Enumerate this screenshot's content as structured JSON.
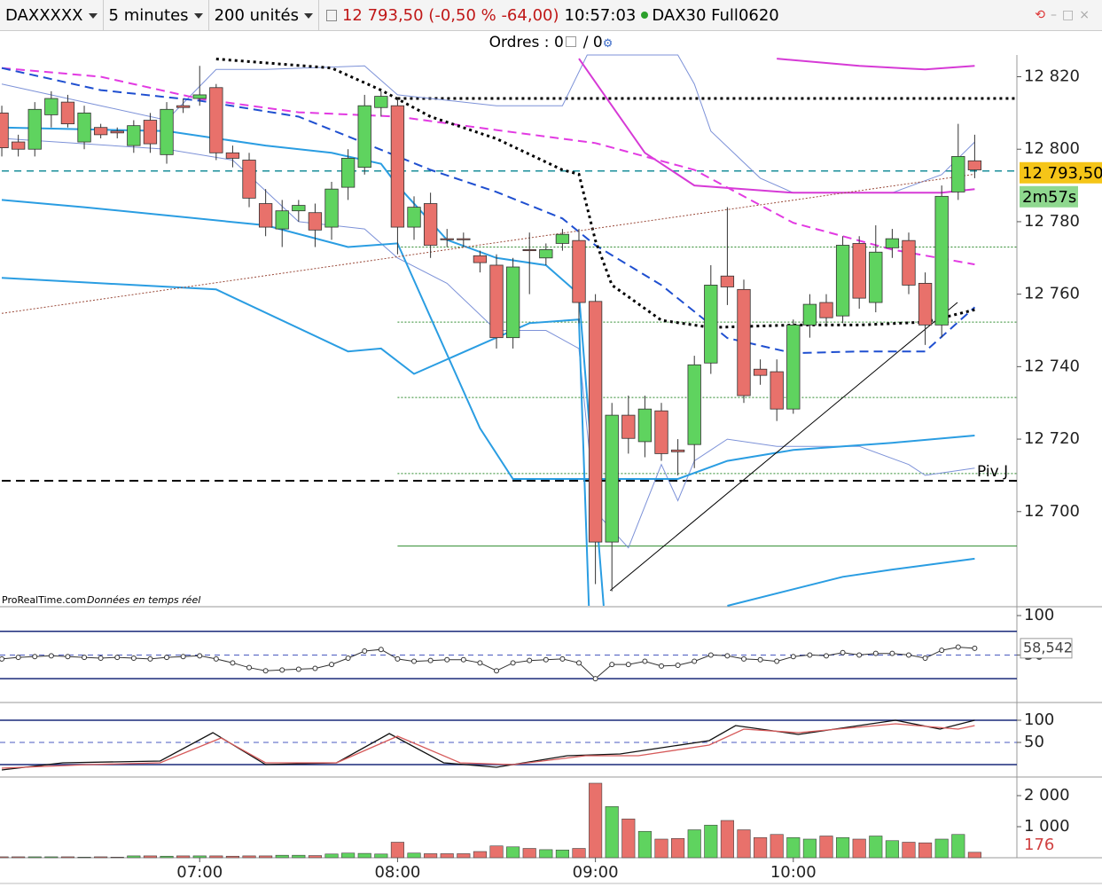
{
  "toolbar": {
    "instrument": "DAXXXXX",
    "interval": "5 minutes",
    "units": "200 unités",
    "quote": "12 793,50 (-0,50 % -64,00)",
    "time": "10:57:03",
    "name": "DAX30 Full0620"
  },
  "orders": {
    "label": "Ordres : 0",
    "second": "/ 0"
  },
  "chart_data": [
    {
      "type": "candlestick",
      "source": "ProRealTime.com",
      "source_note": "Données en temps réel",
      "up_color": "#5fd35f",
      "down_color": "#e8716b",
      "xlim": [
        -0.11,
        61.56
      ],
      "xticks": [
        {
          "value": 12,
          "label": "07:00"
        },
        {
          "value": 24,
          "label": "08:00"
        },
        {
          "value": 36,
          "label": "09:00"
        },
        {
          "value": 48,
          "label": "10:00"
        }
      ],
      "ylim": [
        12674,
        12826
      ],
      "yticks": [
        {
          "value": 12820,
          "label": "12 820"
        },
        {
          "value": 12800,
          "label": "12 800"
        },
        {
          "value": 12780,
          "label": "12 780"
        },
        {
          "value": 12760,
          "label": "12 760"
        },
        {
          "value": 12740,
          "label": "12 740"
        },
        {
          "value": 12720,
          "label": "12 720"
        },
        {
          "value": 12700,
          "label": "12 700"
        }
      ],
      "open": [
        12810,
        12802,
        12800,
        12809.5,
        12813,
        12802,
        12806,
        12805,
        12801,
        12808,
        12798.5,
        12812,
        12814,
        12817,
        12799,
        12797,
        12785,
        12778,
        12783,
        12782.5,
        12778.5,
        12789.5,
        12795,
        12811.5,
        12812,
        12778.5,
        12785,
        12775.3,
        12775.3,
        12770.6,
        12768,
        12748,
        12772.3,
        12770,
        12774,
        12774.8,
        12758,
        12691.6,
        12726.6,
        12719.3,
        12727.8,
        12717,
        12718.5,
        12741,
        12765,
        12761.3,
        12739.3,
        12738.6,
        12728.3,
        12751.5,
        12757.7,
        12754,
        12774,
        12757.7,
        12772.8,
        12774.8,
        12763,
        12751.5,
        12788.2,
        12796.8
      ],
      "high": [
        12812,
        12804,
        12813,
        12816,
        12815,
        12812,
        12807,
        12806,
        12808,
        12810,
        12813,
        12814,
        12823,
        12818,
        12801,
        12799,
        12789,
        12786,
        12786,
        12785,
        12791,
        12800,
        12815,
        12816,
        12814,
        12787,
        12788,
        12778,
        12777,
        12772,
        12771,
        12770,
        12777,
        12774,
        12778,
        12778,
        12760,
        12730,
        12732,
        12732,
        12730,
        12720,
        12743,
        12768,
        12784,
        12764,
        12742,
        12742,
        12753,
        12760,
        12760,
        12776,
        12776,
        12779,
        12778,
        12777,
        12766,
        12790,
        12807,
        12804
      ],
      "low": [
        12798,
        12798,
        12798,
        12806,
        12806,
        12800,
        12803,
        12803,
        12799,
        12799,
        12796,
        12810,
        12812,
        12797,
        12795,
        12784,
        12776,
        12773,
        12780,
        12773,
        12775,
        12786,
        12793,
        12809,
        12771,
        12775,
        12770,
        12773,
        12773,
        12766,
        12745,
        12745,
        12760,
        12768,
        12772,
        12752,
        12680,
        12678,
        12716,
        12715,
        12714,
        12710,
        12712,
        12738,
        12757,
        12730,
        12735,
        12725,
        12727,
        12748,
        12751,
        12752,
        12756,
        12755,
        12770,
        12760,
        12746,
        12748,
        12786,
        12792
      ],
      "close": [
        12800.4,
        12800,
        12811,
        12814,
        12807,
        12810,
        12804,
        12804.5,
        12806.5,
        12801.5,
        12811,
        12811.5,
        12815,
        12799,
        12797.5,
        12786.5,
        12778.5,
        12783,
        12784.5,
        12777.7,
        12789,
        12797.5,
        12812,
        12814.6,
        12778.5,
        12784,
        12773.5,
        12775,
        12775,
        12768.7,
        12748,
        12767.5,
        12772,
        12772.3,
        12776.5,
        12757.7,
        12691.6,
        12726.6,
        12720.2,
        12728.3,
        12716,
        12716.5,
        12740.5,
        12762.5,
        12762,
        12732,
        12737.6,
        12728.3,
        12751.5,
        12757.2,
        12753.5,
        12773.5,
        12758.9,
        12771.6,
        12775.3,
        12762.5,
        12751.5,
        12787,
        12798,
        12794.3
      ],
      "lines": [
        {
          "color": "#7d92d8",
          "width": 1,
          "dash": "",
          "x": [
            0,
            6,
            10,
            13,
            16,
            22,
            24,
            30,
            34,
            35.5,
            41,
            42,
            43,
            46,
            48,
            54,
            57,
            59
          ],
          "values": [
            12818,
            12812,
            12808,
            12822,
            12822,
            12823,
            12815,
            12812,
            12812,
            12826,
            12826,
            12818,
            12805,
            12792,
            12788,
            12788,
            12793,
            12802
          ]
        },
        {
          "color": "#7d92d8",
          "width": 1,
          "dash": "",
          "x": [
            0,
            10,
            14,
            18,
            22,
            24,
            27,
            30,
            33,
            35,
            36,
            38,
            40,
            41,
            42,
            44,
            47,
            52,
            55,
            56,
            59
          ],
          "values": [
            12803,
            12800,
            12797,
            12780,
            12778,
            12770,
            12763,
            12750,
            12750,
            12745,
            12700,
            12690,
            12713,
            12703,
            12714,
            12720,
            12718,
            12718,
            12713,
            12710,
            12712
          ]
        },
        {
          "color": "#2a9de2",
          "width": 2,
          "dash": "",
          "x": [
            0,
            10,
            16,
            20,
            23,
            24,
            27,
            30,
            33,
            35,
            36.5
          ],
          "values": [
            12806,
            12805,
            12801,
            12799,
            12796,
            12790,
            12775,
            12770,
            12768,
            12760,
            12674
          ]
        },
        {
          "color": "#2a9de2",
          "width": 2,
          "dash": "",
          "x": [
            0,
            5,
            16,
            21,
            24,
            29,
            31,
            34,
            36,
            41,
            44,
            48,
            54,
            59
          ],
          "values": [
            12786,
            12784,
            12779,
            12773,
            12774,
            12723,
            12709,
            12709,
            12709,
            12709,
            12714,
            12717,
            12719,
            12721
          ]
        },
        {
          "color": "#2a9de2",
          "width": 2,
          "dash": "",
          "x": [
            0,
            13,
            21,
            23,
            25,
            32,
            35,
            35.6,
            40,
            44,
            51,
            54,
            59
          ],
          "values": [
            12764.5,
            12761.3,
            12744.2,
            12745,
            12738,
            12752,
            12753,
            12674,
            null,
            12674,
            12682,
            12684,
            12687
          ]
        },
        {
          "color": "#d63ad6",
          "width": 2,
          "dash": "",
          "x": [
            35,
            37,
            39,
            42,
            48,
            57,
            59
          ],
          "values": [
            12825,
            12812,
            12799,
            12790,
            12788,
            12788,
            12789
          ]
        },
        {
          "color": "#d63ad6",
          "width": 2,
          "dash": "",
          "x": [
            47,
            52,
            56,
            59
          ],
          "values": [
            12825,
            12823,
            12822,
            12823
          ]
        },
        {
          "color": "#e23ae2",
          "width": 2,
          "dash": "10 6",
          "x": [
            0,
            6,
            12,
            18,
            24,
            30,
            36,
            42,
            48,
            54,
            59
          ],
          "values": [
            12822.4,
            12820,
            12813.9,
            12810.2,
            12809,
            12805.3,
            12801.7,
            12794.3,
            12779.7,
            12772.3,
            12768.2
          ]
        },
        {
          "color": "#1f4fd0",
          "width": 2,
          "dash": "10 6",
          "x": [
            0,
            6,
            12,
            18,
            22,
            26,
            30,
            34,
            36,
            40,
            44,
            48,
            52,
            56,
            59
          ],
          "values": [
            12822.4,
            12816.3,
            12813.4,
            12809,
            12801.7,
            12794.3,
            12788.2,
            12780.9,
            12773.5,
            12762.5,
            12747.9,
            12743.7,
            12744.2,
            12744.2,
            12756.4
          ]
        },
        {
          "color": "#000000",
          "width": 3,
          "dash": "3 4",
          "x": [
            13,
            20,
            23,
            26,
            30,
            34,
            35,
            36,
            37,
            40,
            43,
            48,
            52,
            56,
            59
          ],
          "values": [
            12824.9,
            12822.4,
            12816.3,
            12809,
            12802.9,
            12794.3,
            12793.1,
            12774.8,
            12762.5,
            12752.8,
            12750.8,
            12751.5,
            12751.5,
            12752.3,
            12755.7
          ]
        },
        {
          "color": "#9a4a3a",
          "width": 1,
          "dash": "2 2",
          "x": [
            0,
            59
          ],
          "values": [
            12754.7,
            12793.1
          ]
        },
        {
          "color": "#000000",
          "width": 1,
          "dash": "",
          "x": [
            36.9,
            57.96
          ],
          "values": [
            12678.2,
            12757.7
          ]
        }
      ],
      "levels": [
        {
          "value": 12814,
          "from": 24,
          "color": "#000000",
          "width": 3,
          "dash": "3 4"
        },
        {
          "value": 12794,
          "from": 0,
          "color": "#1a8f9a",
          "width": 1.5,
          "dash": "8 6"
        },
        {
          "value": 12708.5,
          "from": 0,
          "color": "#000000",
          "width": 2,
          "dash": "10 6"
        },
        {
          "value": 12690.5,
          "from": 24,
          "color": "#2e8b2e",
          "width": 1,
          "dash": ""
        },
        {
          "value": 12773,
          "from": 24,
          "color": "#2e8b2e",
          "width": 1,
          "dash": "2 2"
        },
        {
          "value": 12752.3,
          "from": 24,
          "color": "#2e8b2e",
          "width": 1,
          "dash": "2 2"
        },
        {
          "value": 12731.5,
          "from": 24,
          "color": "#2e8b2e",
          "width": 1,
          "dash": "2 2"
        },
        {
          "value": 12710.5,
          "from": 24,
          "color": "#2e8b2e",
          "width": 1,
          "dash": "2 2"
        }
      ],
      "annotation": "Piv J",
      "annotation_value": 12711,
      "last": 12793.5,
      "last_label": "12 793,50",
      "countdown": "2m57s"
    },
    {
      "type": "line",
      "ylim": [
        -8,
        109
      ],
      "yticks": [
        100,
        50
      ],
      "levels": [
        80,
        20
      ],
      "mid": 50,
      "color": "#333333",
      "values": [
        45,
        47,
        48,
        49,
        48,
        47,
        46,
        47,
        46,
        45,
        47,
        48,
        49,
        45,
        40,
        34,
        30,
        31,
        32,
        33,
        38,
        46,
        55,
        57,
        45,
        42,
        43,
        44,
        44,
        40,
        30,
        40,
        43,
        44,
        45,
        40,
        20,
        38,
        38,
        42,
        36,
        37,
        42,
        50,
        49,
        45,
        44,
        42,
        48,
        50,
        49,
        53,
        50,
        52,
        52,
        50,
        46,
        56,
        60,
        58.542
      ],
      "last_label": "58,542"
    },
    {
      "type": "line",
      "ylim": [
        -16,
        134
      ],
      "yticks": [
        100,
        50
      ],
      "levels": [
        100,
        0
      ],
      "mid": 50,
      "series": [
        {
          "color": "#111111",
          "x": [
            0,
            3.7,
            9.6,
            12.8,
            16,
            20.3,
            23.5,
            26.8,
            30,
            34.3,
            37.5,
            42.9,
            44.5,
            48.3,
            54.2,
            56.9,
            59
          ],
          "values": [
            -12,
            4,
            8,
            72,
            0,
            4,
            70,
            4,
            -6,
            20,
            24,
            54,
            88,
            68,
            100,
            80,
            100
          ]
        },
        {
          "color": "#d65a5a",
          "x": [
            0,
            5.3,
            9.6,
            13.3,
            16,
            20.3,
            24,
            27.8,
            31,
            35.4,
            38.6,
            42.9,
            45,
            48.3,
            54.2,
            58,
            59
          ],
          "values": [
            -8,
            0,
            4,
            60,
            4,
            4,
            64,
            4,
            0,
            20,
            20,
            44,
            80,
            72,
            92,
            80,
            88
          ]
        }
      ]
    },
    {
      "type": "bar",
      "ylim": [
        0,
        2457
      ],
      "yticks": [
        {
          "value": 2000,
          "label": "2 000"
        },
        {
          "value": 1000,
          "label": "1 000"
        }
      ],
      "values": [
        30,
        30,
        30,
        30,
        30,
        20,
        30,
        20,
        60,
        60,
        50,
        60,
        60,
        60,
        50,
        60,
        60,
        80,
        80,
        70,
        120,
        150,
        140,
        120,
        500,
        150,
        130,
        130,
        130,
        200,
        380,
        350,
        300,
        260,
        250,
        300,
        2400,
        1650,
        1250,
        850,
        600,
        620,
        900,
        1050,
        1200,
        900,
        650,
        750,
        650,
        600,
        700,
        650,
        600,
        700,
        550,
        500,
        480,
        600,
        750,
        176
      ],
      "last_label": "176"
    }
  ]
}
